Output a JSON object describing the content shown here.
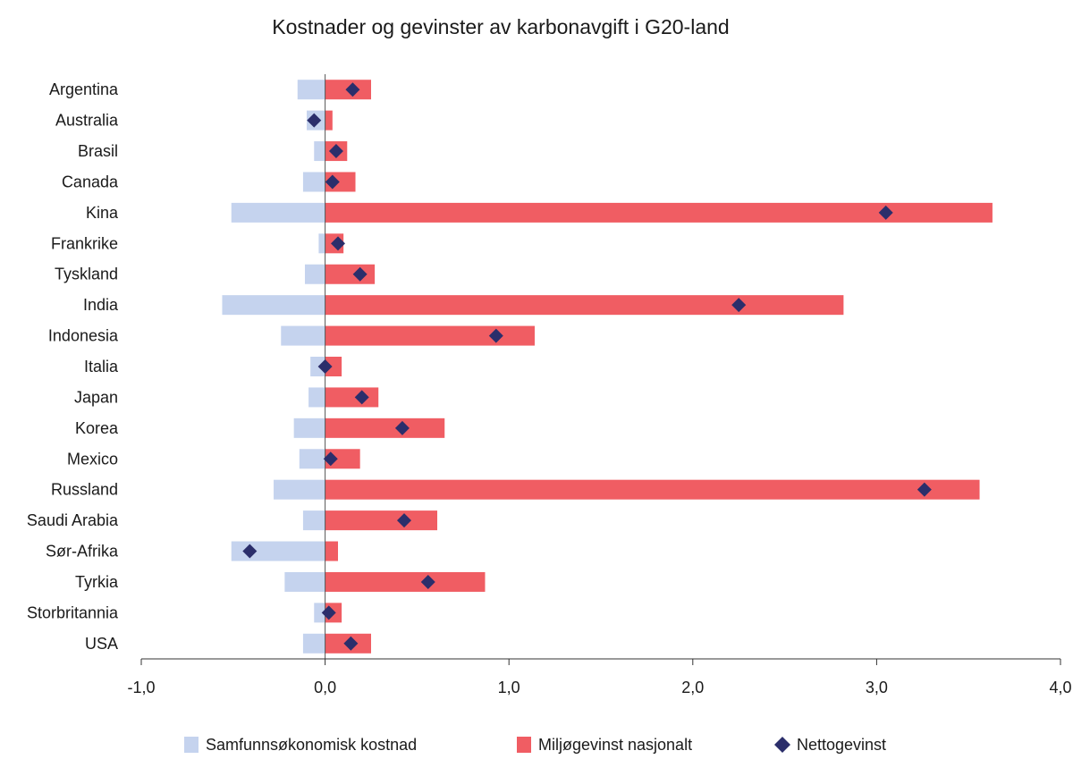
{
  "chart_data": {
    "type": "bar",
    "title": "Kostnader og gevinster av karbonavgift i G20-land",
    "xlabel": "",
    "ylabel": "",
    "xlim": [
      -1,
      4
    ],
    "xticks": [
      -1,
      0,
      1,
      2,
      3,
      4
    ],
    "xtick_labels": [
      "-1,0",
      "0,0",
      "1,0",
      "2,0",
      "3,0",
      "4,0"
    ],
    "grid": false,
    "legend_position": "bottom",
    "categories": [
      "Argentina",
      "Australia",
      "Brasil",
      "Canada",
      "Kina",
      "Frankrike",
      "Tyskland",
      "India",
      "Indonesia",
      "Italia",
      "Japan",
      "Korea",
      "Mexico",
      "Russland",
      "Saudi Arabia",
      "Sør-Afrika",
      "Tyrkia",
      "Storbritannia",
      "USA"
    ],
    "series": [
      {
        "name": "Samfunnsøkonomisk kostnad",
        "kind": "bar",
        "color": "#c5d3ee",
        "values": [
          -0.15,
          -0.1,
          -0.06,
          -0.12,
          -0.51,
          -0.035,
          -0.11,
          -0.56,
          -0.24,
          -0.08,
          -0.09,
          -0.17,
          -0.14,
          -0.28,
          -0.12,
          -0.51,
          -0.22,
          -0.06,
          -0.12
        ]
      },
      {
        "name": "Miljøgevinst nasjonalt",
        "kind": "bar",
        "color": "#f05d63",
        "values": [
          0.25,
          0.04,
          0.12,
          0.165,
          3.63,
          0.1,
          0.27,
          2.82,
          1.14,
          0.09,
          0.29,
          0.65,
          0.19,
          3.56,
          0.61,
          0.07,
          0.87,
          0.09,
          0.25
        ]
      },
      {
        "name": "Nettogevinst",
        "kind": "marker",
        "color": "#2b2e6b",
        "values": [
          0.15,
          -0.06,
          0.06,
          0.04,
          3.05,
          0.07,
          0.19,
          2.25,
          0.93,
          0.0,
          0.2,
          0.42,
          0.03,
          3.26,
          0.43,
          -0.41,
          0.56,
          0.02,
          0.14
        ]
      }
    ]
  }
}
